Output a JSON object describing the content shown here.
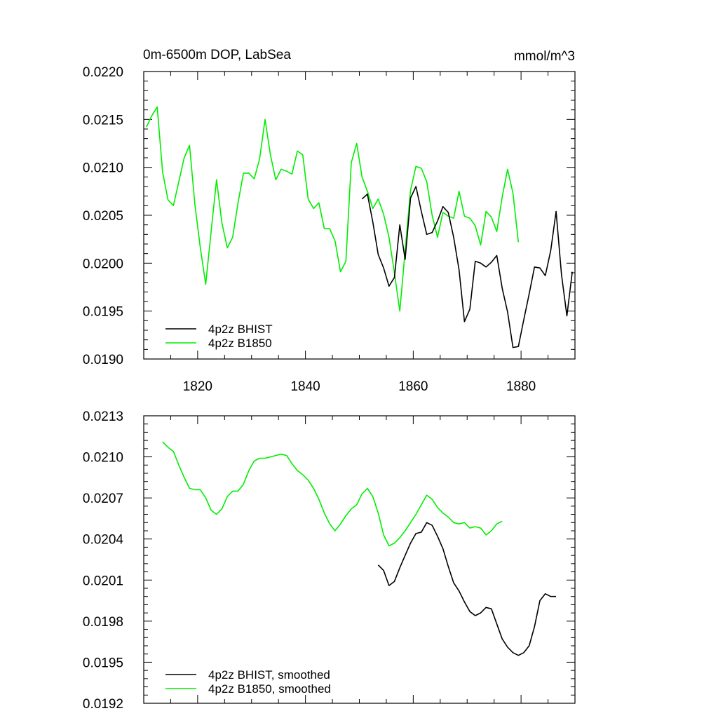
{
  "chart_data": [
    {
      "type": "line",
      "title_left": "0m-6500m DOP, LabSea",
      "title_right": "mmol/m^3",
      "xlim": [
        1810,
        1890
      ],
      "ylim": [
        0.019,
        0.022
      ],
      "x_ticks": [
        1820,
        1840,
        1860,
        1880
      ],
      "x_tick_labels": [
        "1820",
        "1840",
        "1860",
        "1880"
      ],
      "y_ticks": [
        0.019,
        0.0195,
        0.02,
        0.0205,
        0.021,
        0.0215,
        0.022
      ],
      "y_tick_labels": [
        "0.0190",
        "0.0195",
        "0.0200",
        "0.0205",
        "0.0210",
        "0.0215",
        "0.0220"
      ],
      "legend": {
        "position": "bottom-left"
      },
      "series": [
        {
          "name": "4p2z BHIST",
          "color": "#000000",
          "x": [
            1850.5,
            1851.5,
            1852.5,
            1853.5,
            1854.5,
            1855.5,
            1856.5,
            1857.5,
            1858.5,
            1859.5,
            1860.5,
            1861.5,
            1862.5,
            1863.5,
            1864.5,
            1865.5,
            1866.5,
            1867.5,
            1868.5,
            1869.5,
            1870.5,
            1871.5,
            1872.5,
            1873.5,
            1874.5,
            1875.5,
            1876.5,
            1877.5,
            1878.5,
            1879.5,
            1880.5,
            1881.5,
            1882.5,
            1883.5,
            1884.5,
            1885.5,
            1886.5,
            1887.5,
            1888.5,
            1889.5
          ],
          "values": [
            0.02067,
            0.02072,
            0.02043,
            0.02009,
            0.01995,
            0.01976,
            0.01985,
            0.0204,
            0.02004,
            0.02068,
            0.0208,
            0.02054,
            0.0203,
            0.02032,
            0.02044,
            0.02059,
            0.02053,
            0.02027,
            0.01993,
            0.01939,
            0.01952,
            0.02002,
            0.02,
            0.01996,
            0.02001,
            0.02008,
            0.01974,
            0.01949,
            0.01912,
            0.01913,
            0.01941,
            0.01968,
            0.01996,
            0.01995,
            0.01987,
            0.02013,
            0.02054,
            0.01988,
            0.01945,
            0.01991
          ]
        },
        {
          "name": "4p2z B1850",
          "color": "#00ee00",
          "x": [
            1810.5,
            1811.5,
            1812.5,
            1813.5,
            1814.5,
            1815.5,
            1816.5,
            1817.5,
            1818.5,
            1819.5,
            1820.5,
            1821.5,
            1822.5,
            1823.5,
            1824.5,
            1825.5,
            1826.5,
            1827.5,
            1828.5,
            1829.5,
            1830.5,
            1831.5,
            1832.5,
            1833.5,
            1834.5,
            1835.5,
            1836.5,
            1837.5,
            1838.5,
            1839.5,
            1840.5,
            1841.5,
            1842.5,
            1843.5,
            1844.5,
            1845.5,
            1846.5,
            1847.5,
            1848.5,
            1849.5,
            1850.5,
            1851.5,
            1852.5,
            1853.5,
            1854.5,
            1855.5,
            1856.5,
            1857.5,
            1858.5,
            1859.5,
            1860.5,
            1861.5,
            1862.5,
            1863.5,
            1864.5,
            1865.5,
            1866.5,
            1867.5,
            1868.5,
            1869.5,
            1870.5,
            1871.5,
            1872.5,
            1873.5,
            1874.5,
            1875.5,
            1876.5,
            1877.5,
            1878.5,
            1879.5
          ],
          "values": [
            0.02142,
            0.02154,
            0.02163,
            0.02095,
            0.02066,
            0.0206,
            0.02085,
            0.0211,
            0.02123,
            0.02061,
            0.02016,
            0.01978,
            0.02033,
            0.02087,
            0.02042,
            0.02016,
            0.02027,
            0.02063,
            0.02094,
            0.02094,
            0.02088,
            0.02109,
            0.0215,
            0.02113,
            0.02087,
            0.02098,
            0.02096,
            0.02093,
            0.02117,
            0.02113,
            0.02067,
            0.02057,
            0.02063,
            0.02036,
            0.02036,
            0.02023,
            0.01991,
            0.02002,
            0.02105,
            0.02125,
            0.0209,
            0.02075,
            0.02057,
            0.02067,
            0.02051,
            0.02027,
            0.0199,
            0.0195,
            0.02013,
            0.02076,
            0.02101,
            0.02099,
            0.02085,
            0.0205,
            0.02027,
            0.02053,
            0.02049,
            0.02047,
            0.02075,
            0.02049,
            0.02047,
            0.02039,
            0.02019,
            0.02054,
            0.02048,
            0.02033,
            0.02069,
            0.02098,
            0.02073,
            0.02022
          ]
        }
      ]
    },
    {
      "type": "line",
      "xlim": [
        1810,
        1890
      ],
      "ylim": [
        0.0192,
        0.0213
      ],
      "y_ticks": [
        0.0192,
        0.0195,
        0.0198,
        0.0201,
        0.0204,
        0.0207,
        0.021,
        0.0213
      ],
      "y_tick_labels": [
        "0.0192",
        "0.0195",
        "0.0198",
        "0.0201",
        "0.0204",
        "0.0207",
        "0.0210",
        "0.0213"
      ],
      "legend": {
        "position": "bottom-left"
      },
      "series": [
        {
          "name": "4p2z BHIST, smoothed",
          "color": "#000000",
          "x": [
            1853.5,
            1854.5,
            1855.5,
            1856.5,
            1857.5,
            1858.5,
            1859.5,
            1860.5,
            1861.5,
            1862.5,
            1863.5,
            1864.5,
            1865.5,
            1866.5,
            1867.5,
            1868.5,
            1869.5,
            1870.5,
            1871.5,
            1872.5,
            1873.5,
            1874.5,
            1875.5,
            1876.5,
            1877.5,
            1878.5,
            1879.5,
            1880.5,
            1881.5,
            1882.5,
            1883.5,
            1884.5,
            1885.5,
            1886.5
          ],
          "values": [
            0.02021,
            0.02017,
            0.02006,
            0.02009,
            0.02019,
            0.02028,
            0.02037,
            0.02044,
            0.02045,
            0.02052,
            0.0205,
            0.02042,
            0.02033,
            0.0202,
            0.02008,
            0.02002,
            0.01994,
            0.01987,
            0.01984,
            0.01986,
            0.0199,
            0.01989,
            0.01978,
            0.01967,
            0.01961,
            0.01957,
            0.01955,
            0.01957,
            0.01962,
            0.01976,
            0.01995,
            0.02,
            0.01998,
            0.01998
          ]
        },
        {
          "name": "4p2z B1850, smoothed",
          "color": "#00ee00",
          "x": [
            1813.5,
            1814.5,
            1815.5,
            1816.5,
            1817.5,
            1818.5,
            1819.5,
            1820.5,
            1821.5,
            1822.5,
            1823.5,
            1824.5,
            1825.5,
            1826.5,
            1827.5,
            1828.5,
            1829.5,
            1830.5,
            1831.5,
            1832.5,
            1833.5,
            1834.5,
            1835.5,
            1836.5,
            1837.5,
            1838.5,
            1839.5,
            1840.5,
            1841.5,
            1842.5,
            1843.5,
            1844.5,
            1845.5,
            1846.5,
            1847.5,
            1848.5,
            1849.5,
            1850.5,
            1851.5,
            1852.5,
            1853.5,
            1854.5,
            1855.5,
            1856.5,
            1857.5,
            1858.5,
            1859.5,
            1860.5,
            1861.5,
            1862.5,
            1863.5,
            1864.5,
            1865.5,
            1866.5,
            1867.5,
            1868.5,
            1869.5,
            1870.5,
            1871.5,
            1872.5,
            1873.5,
            1874.5,
            1875.5,
            1876.5
          ],
          "values": [
            0.02111,
            0.02107,
            0.02104,
            0.02094,
            0.02085,
            0.02077,
            0.02076,
            0.02076,
            0.0207,
            0.02061,
            0.02058,
            0.02062,
            0.02071,
            0.02075,
            0.02075,
            0.0208,
            0.0209,
            0.02097,
            0.02099,
            0.02099,
            0.021,
            0.02101,
            0.02102,
            0.02101,
            0.02095,
            0.0209,
            0.02087,
            0.02083,
            0.02077,
            0.02069,
            0.02059,
            0.02051,
            0.02046,
            0.02051,
            0.02057,
            0.02062,
            0.02065,
            0.02073,
            0.02077,
            0.02071,
            0.02059,
            0.02043,
            0.02035,
            0.02037,
            0.02041,
            0.02046,
            0.02052,
            0.02058,
            0.02065,
            0.02072,
            0.02069,
            0.02063,
            0.02059,
            0.02056,
            0.02052,
            0.02051,
            0.02052,
            0.02048,
            0.02049,
            0.02048,
            0.02043,
            0.02046,
            0.02051,
            0.02053
          ]
        }
      ]
    }
  ]
}
